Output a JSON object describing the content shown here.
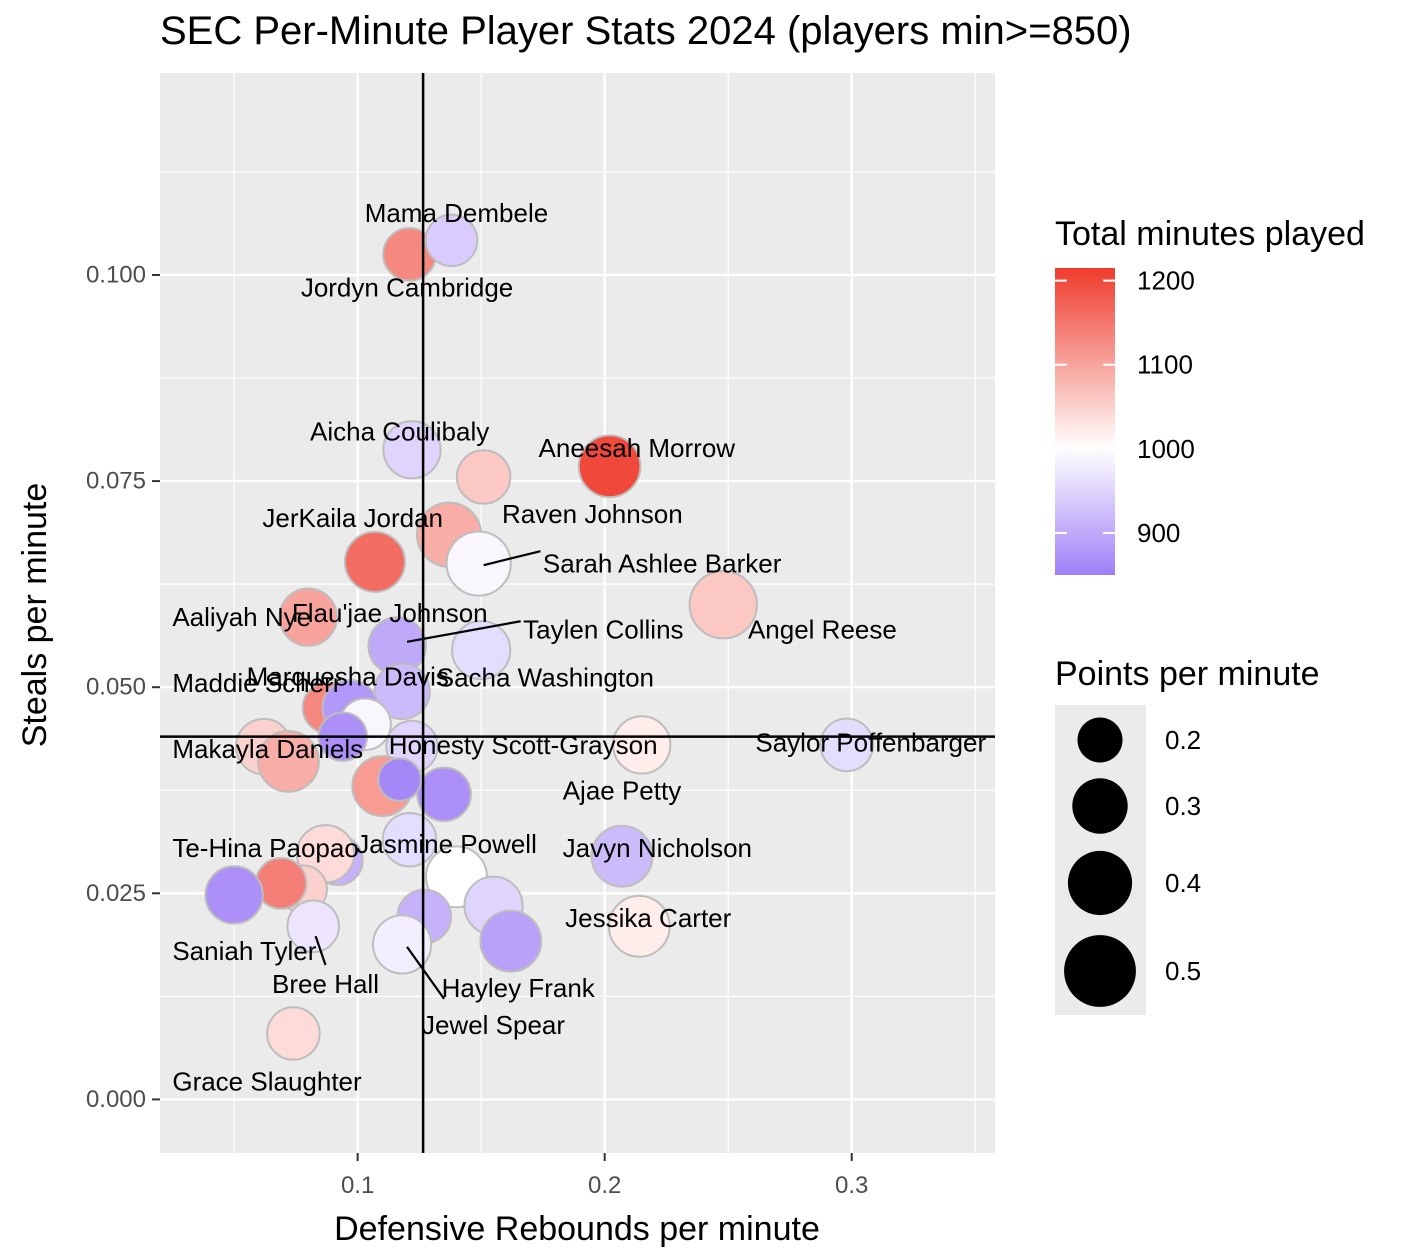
{
  "chart_data": {
    "type": "scatter",
    "title": "SEC Per-Minute Player Stats 2024 (players min>=850)",
    "xlabel": "Defensive Rebounds per minute",
    "ylabel": "Steals per minute",
    "xlim": [
      0.02,
      0.358
    ],
    "ylim": [
      -0.0065,
      0.1245
    ],
    "x_ticks": [
      0.1,
      0.2,
      0.3
    ],
    "x_tick_labels": [
      "0.1",
      "0.2",
      "0.3"
    ],
    "y_ticks": [
      0.0,
      0.025,
      0.05,
      0.075,
      0.1
    ],
    "y_tick_labels": [
      "0.000",
      "0.025",
      "0.050",
      "0.075",
      "0.100"
    ],
    "x_minor_ticks": [
      0.05,
      0.15,
      0.25,
      0.35
    ],
    "y_minor_ticks": [
      0.0125,
      0.0375,
      0.0625,
      0.0875,
      0.1125
    ],
    "reference_lines": {
      "vertical_x": 0.1265,
      "horizontal_y": 0.044
    },
    "grid": true,
    "legend_position": "right",
    "color_legend": {
      "title": "Total minutes played",
      "ticks": [
        900,
        1000,
        1100,
        1200
      ],
      "tick_labels": [
        "900",
        "1000",
        "1100",
        "1200"
      ],
      "range": [
        850,
        1215
      ],
      "colors": {
        "low": "#9f7ff7",
        "mid": "#ffffff",
        "high": "#ef3b2c"
      },
      "midpoint": 1000
    },
    "size_legend": {
      "title": "Points per minute",
      "values": [
        0.2,
        0.3,
        0.4,
        0.5
      ],
      "labels": [
        "0.2",
        "0.3",
        "0.4",
        "0.5"
      ],
      "range": [
        0.13,
        0.53
      ]
    },
    "points": [
      {
        "x": 0.121,
        "y": 0.1025,
        "minutes": 1130,
        "ppm": 0.27
      },
      {
        "x": 0.138,
        "y": 0.1042,
        "minutes": 940,
        "ppm": 0.26
      },
      {
        "x": 0.122,
        "y": 0.0788,
        "minutes": 950,
        "ppm": 0.32
      },
      {
        "x": 0.151,
        "y": 0.0755,
        "minutes": 1060,
        "ppm": 0.28
      },
      {
        "x": 0.202,
        "y": 0.0768,
        "minutes": 1200,
        "ppm": 0.37
      },
      {
        "x": 0.137,
        "y": 0.0685,
        "minutes": 1090,
        "ppm": 0.4
      },
      {
        "x": 0.107,
        "y": 0.0652,
        "minutes": 1160,
        "ppm": 0.35
      },
      {
        "x": 0.149,
        "y": 0.065,
        "minutes": 990,
        "ppm": 0.4
      },
      {
        "x": 0.248,
        "y": 0.06,
        "minutes": 1060,
        "ppm": 0.44
      },
      {
        "x": 0.08,
        "y": 0.0585,
        "minutes": 1100,
        "ppm": 0.32
      },
      {
        "x": 0.116,
        "y": 0.055,
        "minutes": 900,
        "ppm": 0.32
      },
      {
        "x": 0.15,
        "y": 0.0545,
        "minutes": 960,
        "ppm": 0.33
      },
      {
        "x": 0.118,
        "y": 0.0495,
        "minutes": 920,
        "ppm": 0.3
      },
      {
        "x": 0.088,
        "y": 0.0475,
        "minutes": 1130,
        "ppm": 0.25
      },
      {
        "x": 0.097,
        "y": 0.0475,
        "minutes": 880,
        "ppm": 0.3
      },
      {
        "x": 0.103,
        "y": 0.0455,
        "minutes": 990,
        "ppm": 0.26
      },
      {
        "x": 0.094,
        "y": 0.044,
        "minutes": 870,
        "ppm": 0.23
      },
      {
        "x": 0.215,
        "y": 0.043,
        "minutes": 1020,
        "ppm": 0.32
      },
      {
        "x": 0.298,
        "y": 0.043,
        "minutes": 960,
        "ppm": 0.27
      },
      {
        "x": 0.062,
        "y": 0.0428,
        "minutes": 1050,
        "ppm": 0.3
      },
      {
        "x": 0.122,
        "y": 0.0428,
        "minutes": 950,
        "ppm": 0.26
      },
      {
        "x": 0.072,
        "y": 0.041,
        "minutes": 1090,
        "ppm": 0.36
      },
      {
        "x": 0.11,
        "y": 0.038,
        "minutes": 1110,
        "ppm": 0.35
      },
      {
        "x": 0.135,
        "y": 0.037,
        "minutes": 870,
        "ppm": 0.28
      },
      {
        "x": 0.117,
        "y": 0.0388,
        "minutes": 860,
        "ppm": 0.18
      },
      {
        "x": 0.121,
        "y": 0.0315,
        "minutes": 960,
        "ppm": 0.28
      },
      {
        "x": 0.092,
        "y": 0.029,
        "minutes": 910,
        "ppm": 0.24
      },
      {
        "x": 0.087,
        "y": 0.0298,
        "minutes": 1040,
        "ppm": 0.32
      },
      {
        "x": 0.207,
        "y": 0.0295,
        "minutes": 920,
        "ppm": 0.36
      },
      {
        "x": 0.14,
        "y": 0.027,
        "minutes": 1000,
        "ppm": 0.36
      },
      {
        "x": 0.078,
        "y": 0.0255,
        "minutes": 1050,
        "ppm": 0.22
      },
      {
        "x": 0.069,
        "y": 0.0262,
        "minutes": 1140,
        "ppm": 0.25
      },
      {
        "x": 0.05,
        "y": 0.0248,
        "minutes": 870,
        "ppm": 0.32
      },
      {
        "x": 0.155,
        "y": 0.0235,
        "minutes": 950,
        "ppm": 0.33
      },
      {
        "x": 0.127,
        "y": 0.0222,
        "minutes": 910,
        "ppm": 0.28
      },
      {
        "x": 0.082,
        "y": 0.021,
        "minutes": 970,
        "ppm": 0.26
      },
      {
        "x": 0.214,
        "y": 0.021,
        "minutes": 1020,
        "ppm": 0.36
      },
      {
        "x": 0.162,
        "y": 0.0192,
        "minutes": 890,
        "ppm": 0.36
      },
      {
        "x": 0.118,
        "y": 0.0188,
        "minutes": 980,
        "ppm": 0.33
      },
      {
        "x": 0.074,
        "y": 0.008,
        "minutes": 1040,
        "ppm": 0.27
      }
    ],
    "annotations": [
      {
        "text": "Mama Dembele",
        "x": 0.14,
        "y": 0.1075,
        "anchor": "middle"
      },
      {
        "text": "Jordyn Cambridge",
        "x": 0.12,
        "y": 0.0985,
        "anchor": "middle"
      },
      {
        "text": "Aicha Coulibaly",
        "x": 0.117,
        "y": 0.081,
        "anchor": "middle"
      },
      {
        "text": "Aneesah Morrow",
        "x": 0.213,
        "y": 0.079,
        "anchor": "middle"
      },
      {
        "text": "JerKaila Jordan",
        "x": 0.098,
        "y": 0.0705,
        "anchor": "middle"
      },
      {
        "text": "Raven Johnson",
        "x": 0.195,
        "y": 0.071,
        "anchor": "middle"
      },
      {
        "text": "Sarah Ashlee Barker",
        "x": 0.175,
        "y": 0.065,
        "anchor": "start"
      },
      {
        "text": "Aaliyah Nye",
        "x": 0.025,
        "y": 0.0585,
        "anchor": "start"
      },
      {
        "text": "Flau'jae Johnson",
        "x": 0.113,
        "y": 0.059,
        "anchor": "middle"
      },
      {
        "text": "Taylen Collins",
        "x": 0.167,
        "y": 0.057,
        "anchor": "start"
      },
      {
        "text": "Angel Reese",
        "x": 0.258,
        "y": 0.057,
        "anchor": "start"
      },
      {
        "text": "Marquesha Davis",
        "x": 0.096,
        "y": 0.0513,
        "anchor": "middle"
      },
      {
        "text": "Maddie Scherr",
        "x": 0.025,
        "y": 0.0505,
        "anchor": "start"
      },
      {
        "text": "Sacha Washington",
        "x": 0.176,
        "y": 0.0512,
        "anchor": "middle"
      },
      {
        "text": "Makayla Daniels",
        "x": 0.025,
        "y": 0.0425,
        "anchor": "start"
      },
      {
        "text": "Honesty Scott-Grayson",
        "x": 0.167,
        "y": 0.043,
        "anchor": "middle"
      },
      {
        "text": "Saylor Poffenbarger",
        "x": 0.261,
        "y": 0.0433,
        "anchor": "start"
      },
      {
        "text": "Ajae Petty",
        "x": 0.207,
        "y": 0.0375,
        "anchor": "middle"
      },
      {
        "text": "Te-Hina Paopao",
        "x": 0.025,
        "y": 0.0305,
        "anchor": "start"
      },
      {
        "text": "Jasmine Powell",
        "x": 0.136,
        "y": 0.031,
        "anchor": "middle"
      },
      {
        "text": "Javyn Nicholson",
        "x": 0.183,
        "y": 0.0305,
        "anchor": "start"
      },
      {
        "text": "Jessika Carter",
        "x": 0.184,
        "y": 0.022,
        "anchor": "start"
      },
      {
        "text": "Saniah Tyler",
        "x": 0.025,
        "y": 0.018,
        "anchor": "start"
      },
      {
        "text": "Bree Hall",
        "x": 0.087,
        "y": 0.014,
        "anchor": "middle"
      },
      {
        "text": "Hayley Frank",
        "x": 0.165,
        "y": 0.0135,
        "anchor": "middle"
      },
      {
        "text": "Jewel Spear",
        "x": 0.155,
        "y": 0.009,
        "anchor": "middle"
      },
      {
        "text": "Grace Slaughter",
        "x": 0.025,
        "y": 0.0022,
        "anchor": "start"
      }
    ],
    "leader_lines": [
      {
        "x1": 0.151,
        "y1": 0.0648,
        "x2": 0.174,
        "y2": 0.0665
      },
      {
        "x1": 0.12,
        "y1": 0.0555,
        "x2": 0.166,
        "y2": 0.058
      },
      {
        "x1": 0.083,
        "y1": 0.0198,
        "x2": 0.087,
        "y2": 0.0163
      },
      {
        "x1": 0.12,
        "y1": 0.0185,
        "x2": 0.135,
        "y2": 0.0122
      }
    ]
  }
}
